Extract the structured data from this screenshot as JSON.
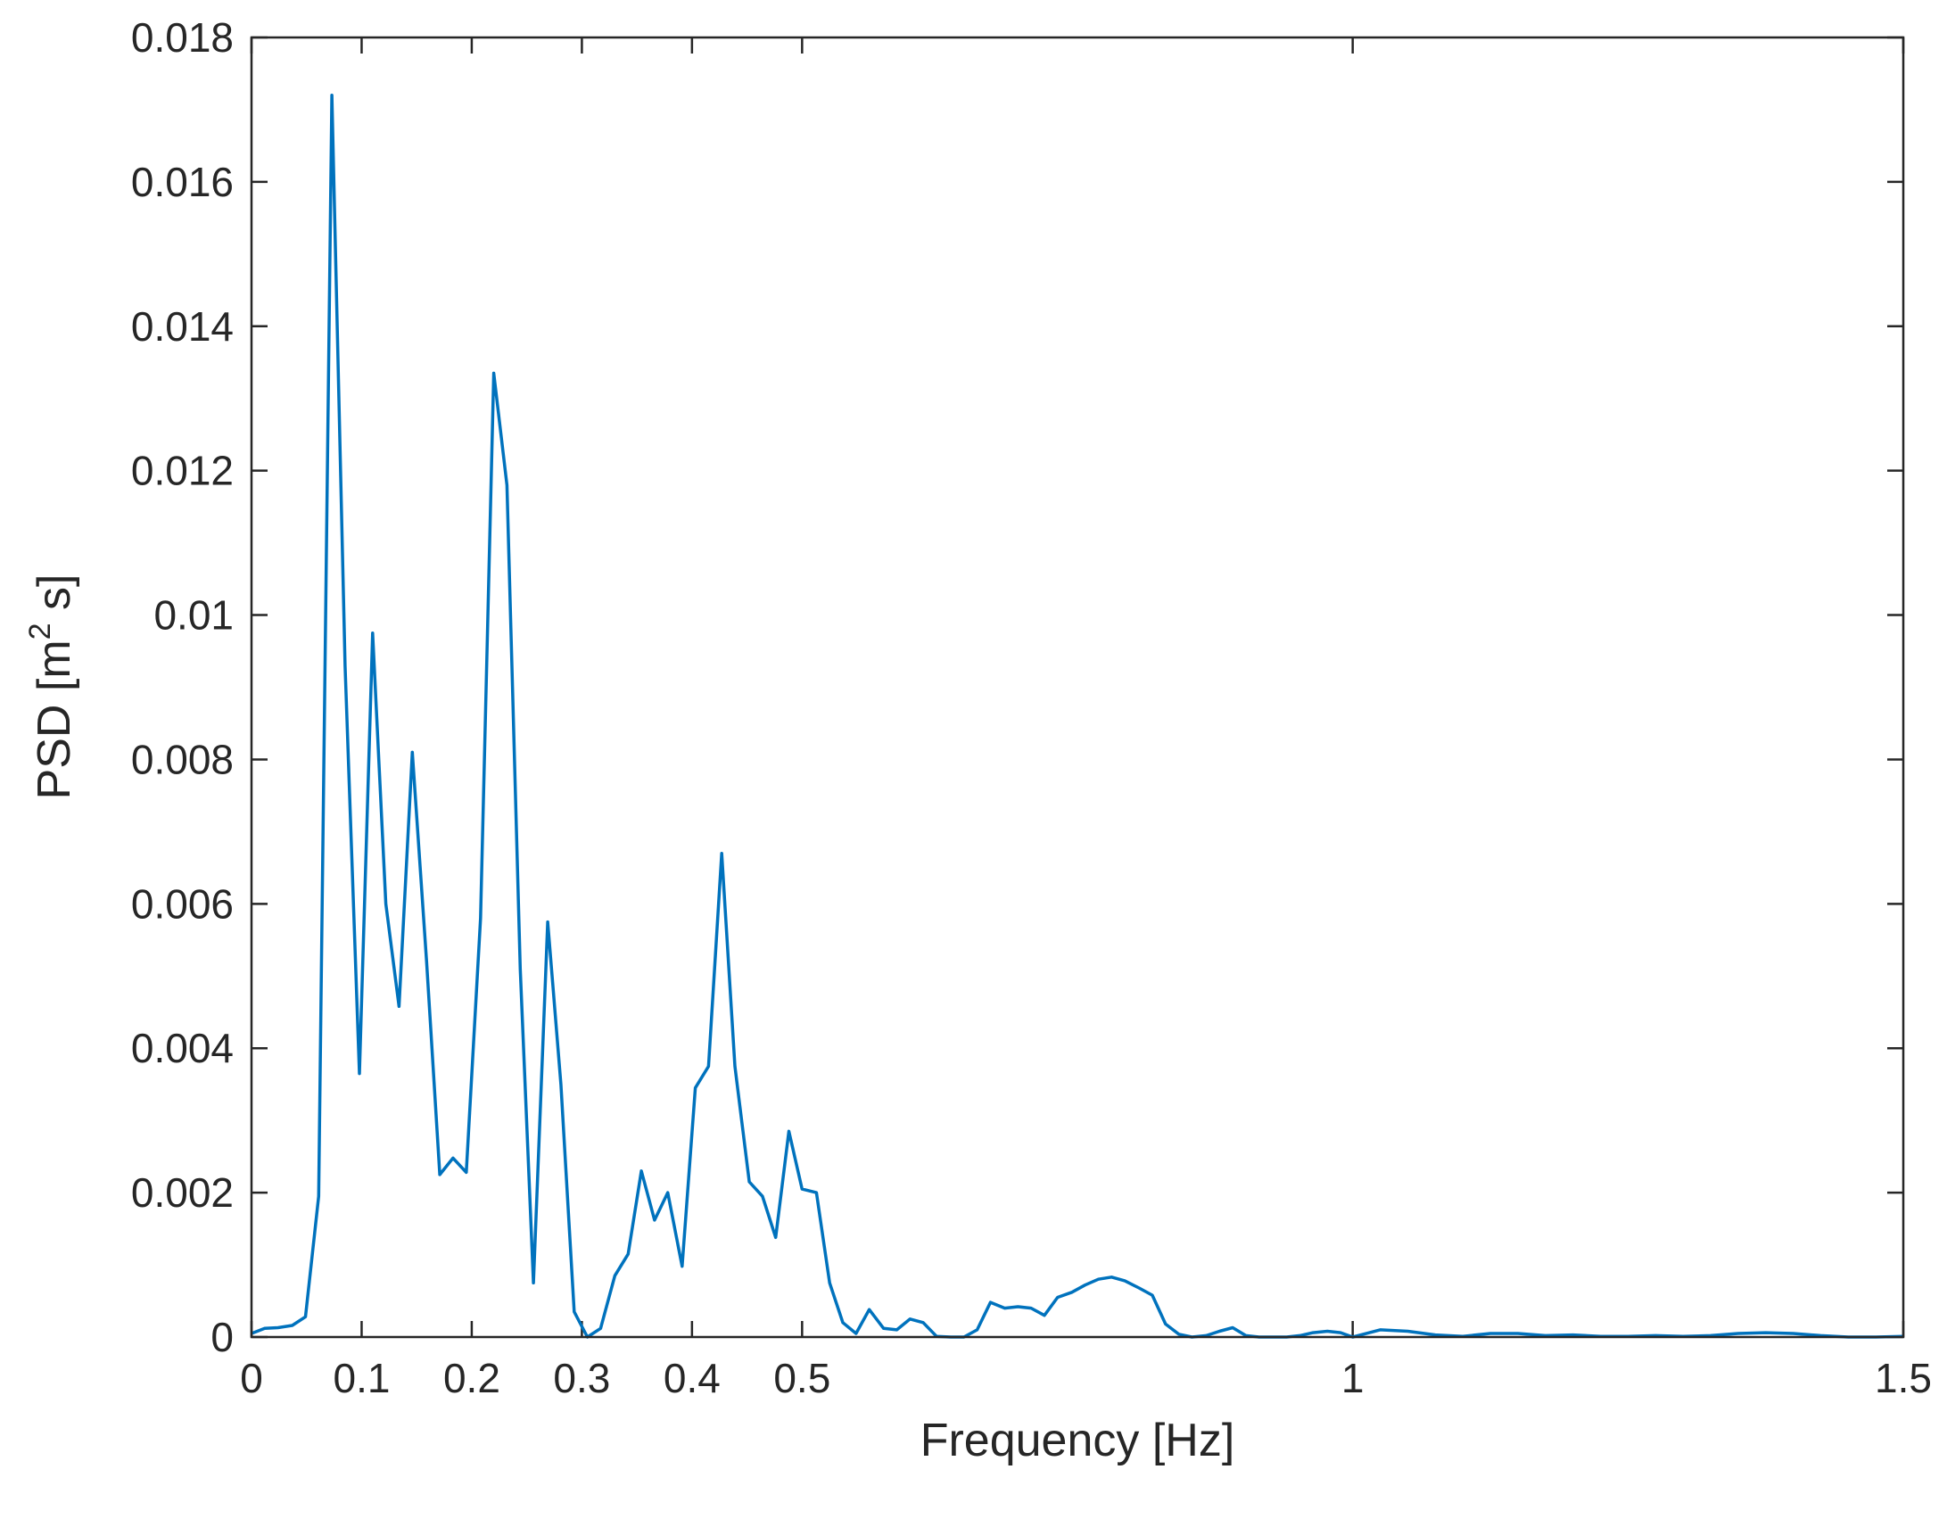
{
  "chart_data": {
    "type": "line",
    "title": "",
    "xlabel": "Frequency [Hz]",
    "ylabel": {
      "prefix": "PSD [m",
      "superscript": "2",
      "suffix": " s]"
    },
    "xlim": [
      0,
      1.5
    ],
    "ylim": [
      0,
      0.018
    ],
    "grid": false,
    "line_color": "#0072BD",
    "axis_color": "#262626",
    "x_ticks": [
      {
        "value": 0,
        "label": "0"
      },
      {
        "value": 0.1,
        "label": "0.1"
      },
      {
        "value": 0.2,
        "label": "0.2"
      },
      {
        "value": 0.3,
        "label": "0.3"
      },
      {
        "value": 0.4,
        "label": "0.4"
      },
      {
        "value": 0.5,
        "label": "0.5"
      },
      {
        "value": 1,
        "label": "1"
      },
      {
        "value": 1.5,
        "label": "1.5"
      }
    ],
    "y_ticks": [
      {
        "value": 0,
        "label": "0"
      },
      {
        "value": 0.002,
        "label": "0.002"
      },
      {
        "value": 0.004,
        "label": "0.004"
      },
      {
        "value": 0.006,
        "label": "0.006"
      },
      {
        "value": 0.008,
        "label": "0.008"
      },
      {
        "value": 0.01,
        "label": "0.01"
      },
      {
        "value": 0.012,
        "label": "0.012"
      },
      {
        "value": 0.014,
        "label": "0.014"
      },
      {
        "value": 0.016,
        "label": "0.016"
      },
      {
        "value": 0.018,
        "label": "0.018"
      }
    ],
    "series": [
      {
        "x": [
          0,
          0.012,
          0.024,
          0.037,
          0.049,
          0.061,
          0.073,
          0.085,
          0.098,
          0.11,
          0.122,
          0.134,
          0.146,
          0.159,
          0.171,
          0.183,
          0.195,
          0.208,
          0.22,
          0.232,
          0.244,
          0.256,
          0.269,
          0.281,
          0.293,
          0.305,
          0.317,
          0.33,
          0.342,
          0.354,
          0.366,
          0.378,
          0.391,
          0.403,
          0.415,
          0.427,
          0.439,
          0.452,
          0.464,
          0.476,
          0.488,
          0.5,
          0.513,
          0.525,
          0.537,
          0.549,
          0.561,
          0.574,
          0.586,
          0.598,
          0.61,
          0.622,
          0.635,
          0.647,
          0.659,
          0.671,
          0.684,
          0.696,
          0.708,
          0.72,
          0.732,
          0.745,
          0.757,
          0.769,
          0.781,
          0.793,
          0.806,
          0.818,
          0.83,
          0.842,
          0.854,
          0.867,
          0.879,
          0.891,
          0.903,
          0.915,
          0.928,
          0.94,
          0.952,
          0.964,
          0.977,
          0.989,
          1.0,
          1.025,
          1.05,
          1.075,
          1.1,
          1.125,
          1.15,
          1.175,
          1.2,
          1.225,
          1.25,
          1.275,
          1.3,
          1.325,
          1.35,
          1.375,
          1.4,
          1.425,
          1.45,
          1.475,
          1.5
        ],
        "y": [
          5e-05,
          0.00012,
          0.00013,
          0.00016,
          0.00028,
          0.00195,
          0.0172,
          0.0093,
          0.00365,
          0.00975,
          0.006,
          0.00458,
          0.0081,
          0.0052,
          0.00225,
          0.00248,
          0.00228,
          0.0058,
          0.01335,
          0.0118,
          0.0051,
          0.00075,
          0.00575,
          0.0035,
          0.00035,
          0.0,
          0.00012,
          0.00085,
          0.00115,
          0.0023,
          0.00162,
          0.002,
          0.00098,
          0.00345,
          0.00375,
          0.0067,
          0.00375,
          0.00215,
          0.00195,
          0.00138,
          0.00285,
          0.00205,
          0.002,
          0.00075,
          0.0002,
          5e-05,
          0.00038,
          0.00012,
          0.0001,
          0.00025,
          0.0002,
          1e-05,
          0.0,
          0.0,
          0.0001,
          0.00048,
          0.0004,
          0.00042,
          0.0004,
          0.0003,
          0.00055,
          0.00062,
          0.00072,
          0.0008,
          0.00083,
          0.00078,
          0.00068,
          0.00058,
          0.00018,
          4e-05,
          0.0,
          2e-05,
          8e-05,
          0.00013,
          2e-05,
          0.0,
          0.0,
          0.0,
          2e-05,
          6e-05,
          8e-05,
          6e-05,
          0.0,
          0.0001,
          8e-05,
          3e-05,
          1e-05,
          5e-05,
          5e-05,
          2e-05,
          3e-05,
          1e-05,
          1e-05,
          2e-05,
          1e-05,
          2e-05,
          5e-05,
          6e-05,
          5e-05,
          2e-05,
          0.0,
          0.0,
          1e-05
        ]
      }
    ]
  }
}
